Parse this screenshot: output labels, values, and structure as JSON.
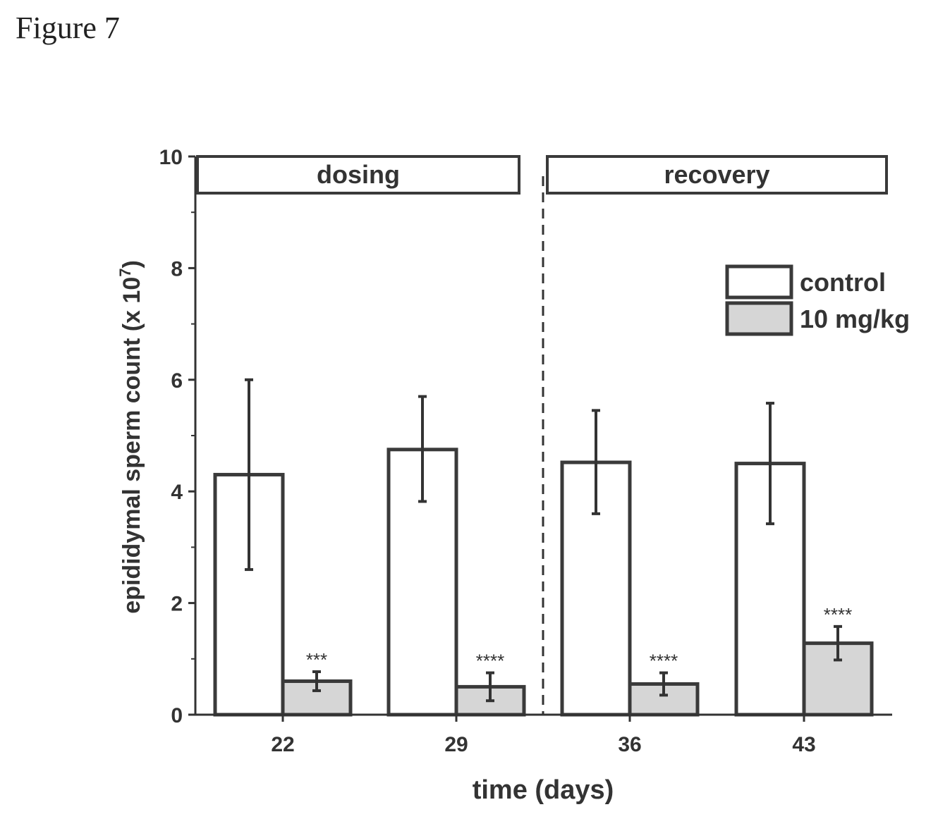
{
  "figure_label": "Figure 7",
  "colors": {
    "axis": "#333333",
    "bar_outline": "#3a3a3a",
    "control_fill": "#ffffff",
    "treated_fill": "#d6d6d6"
  },
  "chart_data": {
    "type": "bar",
    "title": "",
    "xlabel": "time (days)",
    "ylabel": "epididymal sperm count (x 10",
    "ylabel_exponent": "7",
    "ylabel_close": ")",
    "ylim": [
      0,
      10
    ],
    "yticks": [
      0,
      2,
      4,
      6,
      8,
      10
    ],
    "categories": [
      "22",
      "29",
      "36",
      "43"
    ],
    "series": [
      {
        "name": "control",
        "values": [
          4.3,
          4.75,
          4.52,
          4.5
        ],
        "error_low": [
          2.6,
          3.82,
          3.6,
          3.42
        ],
        "error_high": [
          6.0,
          5.7,
          5.45,
          5.58
        ],
        "significance": [
          "",
          "",
          "",
          ""
        ]
      },
      {
        "name": "10 mg/kg",
        "values": [
          0.6,
          0.5,
          0.55,
          1.28
        ],
        "error_low": [
          0.43,
          0.25,
          0.35,
          0.98
        ],
        "error_high": [
          0.77,
          0.75,
          0.75,
          1.58
        ],
        "significance": [
          "***",
          "****",
          "****",
          "****"
        ]
      }
    ],
    "phases": [
      {
        "label": "dosing",
        "categories": [
          "22",
          "29"
        ]
      },
      {
        "label": "recovery",
        "categories": [
          "36",
          "43"
        ]
      }
    ],
    "legend_position": "top-right",
    "grid": false
  }
}
